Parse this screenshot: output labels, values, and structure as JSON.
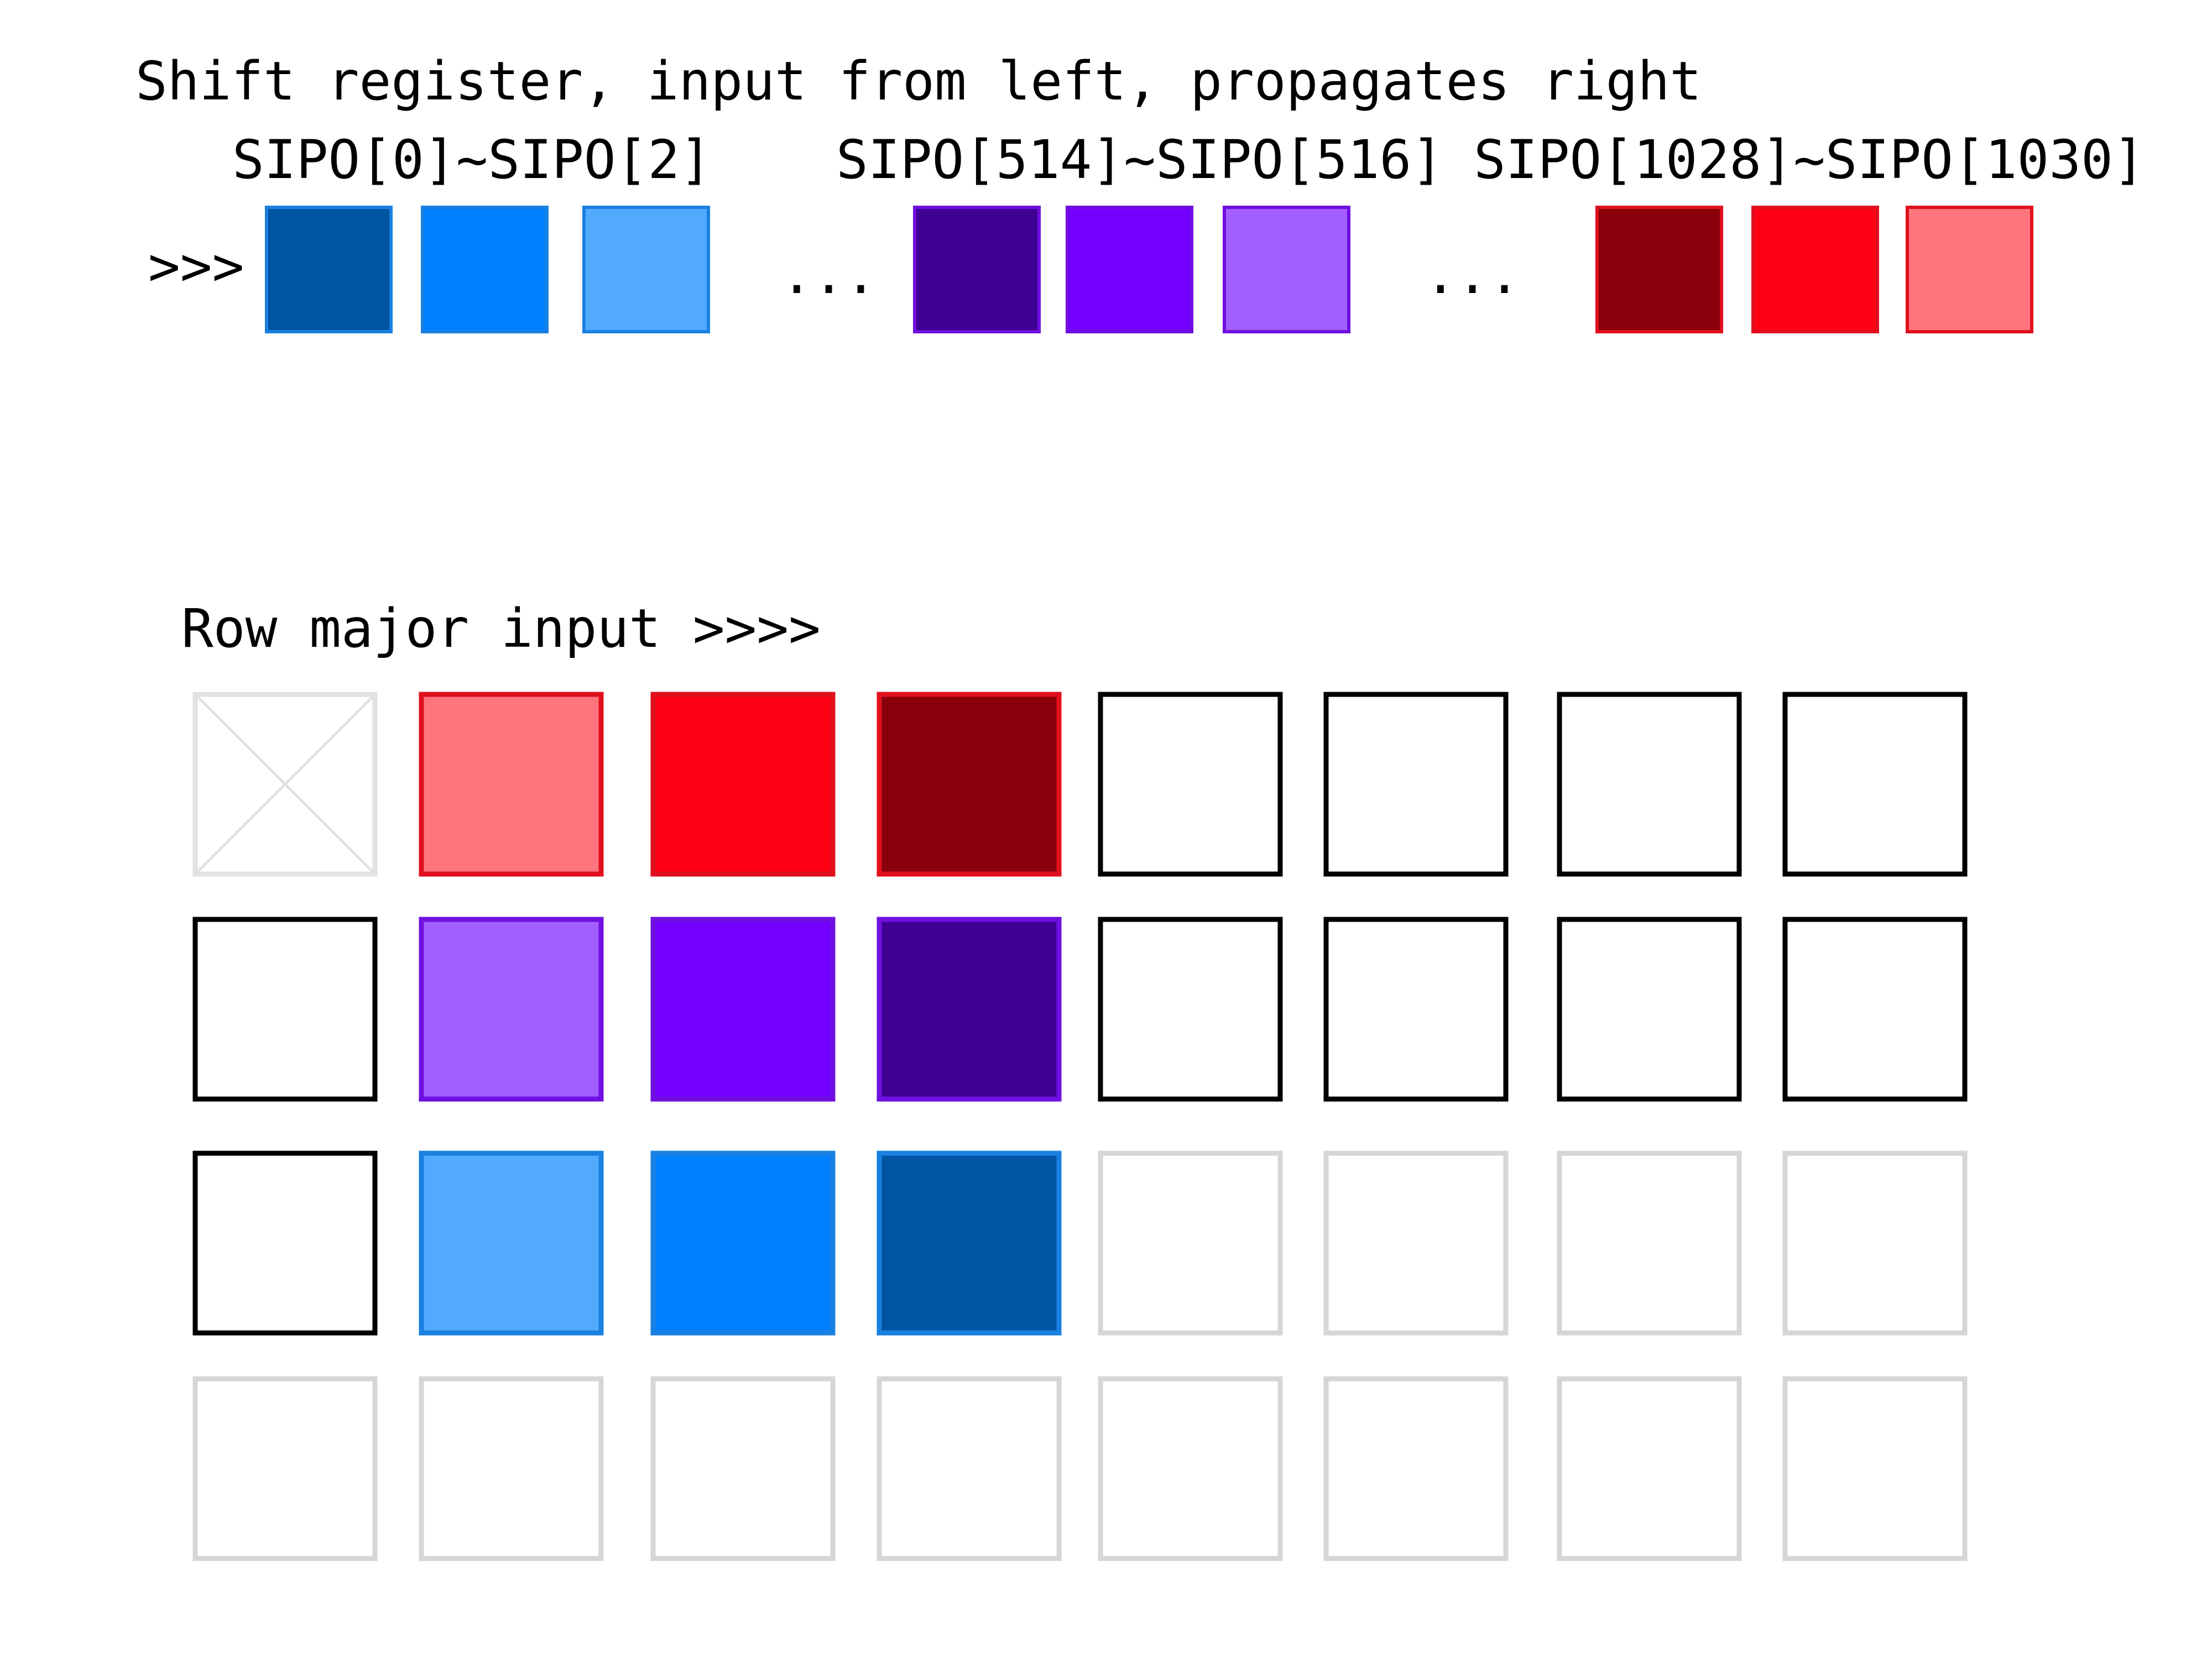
{
  "shift_register": {
    "title": "Shift register, input from left, propagates right",
    "input_arrow": ">>>",
    "ellipsis": "...",
    "groups": [
      {
        "label": "SIPO[0]~SIPO[2]",
        "cells": [
          {
            "fill": "#0055A3",
            "stroke": "#1A80E0"
          },
          {
            "fill": "#0080FF",
            "stroke": "#1A80E0"
          },
          {
            "fill": "#52AAFF",
            "stroke": "#1A80E0"
          }
        ]
      },
      {
        "label": "SIPO[514]~SIPO[516]",
        "cells": [
          {
            "fill": "#3F0094",
            "stroke": "#6F10E0"
          },
          {
            "fill": "#7300FF",
            "stroke": "#6F10E0"
          },
          {
            "fill": "#A35EFF",
            "stroke": "#6F10E0"
          }
        ]
      },
      {
        "label": "SIPO[1028]~SIPO[1030]",
        "cells": [
          {
            "fill": "#8A000A",
            "stroke": "#E0101E"
          },
          {
            "fill": "#FF0015",
            "stroke": "#E0101E"
          },
          {
            "fill": "#FF757E",
            "stroke": "#E0101E"
          }
        ]
      }
    ]
  },
  "grid": {
    "title": "Row major input >>>>",
    "rows": [
      [
        {
          "type": "crossed"
        },
        {
          "type": "filled",
          "fill": "#FF757E",
          "stroke": "#E0101E"
        },
        {
          "type": "filled",
          "fill": "#FF0015",
          "stroke": "#E0101E"
        },
        {
          "type": "filled",
          "fill": "#8A000A",
          "stroke": "#E0101E"
        },
        {
          "type": "empty"
        },
        {
          "type": "empty"
        },
        {
          "type": "empty"
        },
        {
          "type": "empty"
        }
      ],
      [
        {
          "type": "empty"
        },
        {
          "type": "filled",
          "fill": "#A35EFF",
          "stroke": "#6F10E0"
        },
        {
          "type": "filled",
          "fill": "#7300FF",
          "stroke": "#6F10E0"
        },
        {
          "type": "filled",
          "fill": "#3F0094",
          "stroke": "#6F10E0"
        },
        {
          "type": "empty"
        },
        {
          "type": "empty"
        },
        {
          "type": "empty"
        },
        {
          "type": "empty"
        }
      ],
      [
        {
          "type": "empty"
        },
        {
          "type": "filled",
          "fill": "#52AAFF",
          "stroke": "#1A80E0"
        },
        {
          "type": "filled",
          "fill": "#0080FF",
          "stroke": "#1A80E0"
        },
        {
          "type": "filled",
          "fill": "#0055A3",
          "stroke": "#1A80E0"
        },
        {
          "type": "faded"
        },
        {
          "type": "faded"
        },
        {
          "type": "faded"
        },
        {
          "type": "faded"
        }
      ],
      [
        {
          "type": "faded"
        },
        {
          "type": "faded"
        },
        {
          "type": "faded"
        },
        {
          "type": "faded"
        },
        {
          "type": "faded"
        },
        {
          "type": "faded"
        },
        {
          "type": "faded"
        },
        {
          "type": "faded"
        }
      ]
    ]
  }
}
